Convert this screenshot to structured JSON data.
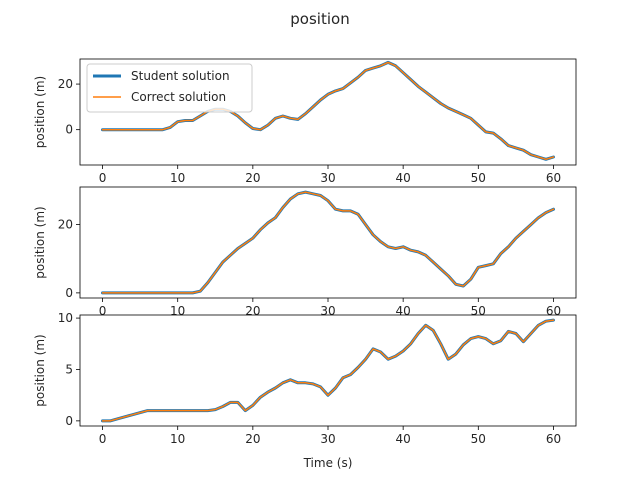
{
  "figure": {
    "title": "position"
  },
  "colors": {
    "student": "#1f77b4",
    "correct": "#ff7f0e"
  },
  "chart_data": [
    {
      "type": "line",
      "xlabel": "",
      "ylabel": "position (m)",
      "xlim": [
        -3,
        63
      ],
      "ylim": [
        -15.5,
        31
      ],
      "xticks": [
        0,
        10,
        20,
        30,
        40,
        50,
        60
      ],
      "yticks": [
        0,
        20
      ],
      "legend": {
        "position": "top-left",
        "entries": [
          "Student solution",
          "Correct solution"
        ]
      },
      "series": [
        {
          "name": "Student solution",
          "color": "#1f77b4",
          "line_width": 3,
          "x": [
            0,
            2,
            4,
            6,
            8,
            9,
            10,
            11,
            12,
            13,
            14,
            15,
            16,
            17,
            18,
            19,
            20,
            21,
            22,
            23,
            24,
            25,
            26,
            27,
            28,
            29,
            30,
            31,
            32,
            33,
            34,
            35,
            36,
            37,
            38,
            39,
            40,
            41,
            42,
            43,
            44,
            45,
            46,
            47,
            48,
            49,
            50,
            51,
            52,
            53,
            54,
            55,
            56,
            57,
            58,
            59,
            60
          ],
          "y": [
            0,
            0,
            0,
            0,
            0,
            1,
            3.5,
            4,
            4,
            6,
            8,
            9,
            9,
            8,
            6,
            3,
            0.5,
            0,
            2,
            5,
            6,
            5,
            4.5,
            7,
            10,
            13,
            15.5,
            17,
            18,
            20.5,
            23,
            26,
            27,
            28,
            29.5,
            28,
            25,
            22,
            19,
            16.5,
            14,
            11.5,
            9.5,
            8,
            6.5,
            5,
            2,
            -1,
            -1.5,
            -4,
            -7,
            -8,
            -9,
            -11,
            -12,
            -13,
            -12
          ]
        },
        {
          "name": "Correct solution",
          "color": "#ff7f0e",
          "line_width": 1.5,
          "x": [
            0,
            2,
            4,
            6,
            8,
            9,
            10,
            11,
            12,
            13,
            14,
            15,
            16,
            17,
            18,
            19,
            20,
            21,
            22,
            23,
            24,
            25,
            26,
            27,
            28,
            29,
            30,
            31,
            32,
            33,
            34,
            35,
            36,
            37,
            38,
            39,
            40,
            41,
            42,
            43,
            44,
            45,
            46,
            47,
            48,
            49,
            50,
            51,
            52,
            53,
            54,
            55,
            56,
            57,
            58,
            59,
            60
          ],
          "y": [
            0,
            0,
            0,
            0,
            0,
            1,
            3.5,
            4,
            4,
            6,
            8,
            9,
            9,
            8,
            6,
            3,
            0.5,
            0,
            2,
            5,
            6,
            5,
            4.5,
            7,
            10,
            13,
            15.5,
            17,
            18,
            20.5,
            23,
            26,
            27,
            28,
            29.5,
            28,
            25,
            22,
            19,
            16.5,
            14,
            11.5,
            9.5,
            8,
            6.5,
            5,
            2,
            -1,
            -1.5,
            -4,
            -7,
            -8,
            -9,
            -11,
            -12,
            -13,
            -12
          ]
        }
      ]
    },
    {
      "type": "line",
      "xlabel": "",
      "ylabel": "position (m)",
      "xlim": [
        -3,
        63
      ],
      "ylim": [
        -1.5,
        31
      ],
      "xticks": [
        0,
        10,
        20,
        30,
        40,
        50,
        60
      ],
      "yticks": [
        0,
        20
      ],
      "series": [
        {
          "name": "Student solution",
          "color": "#1f77b4",
          "line_width": 3,
          "x": [
            0,
            2,
            4,
            6,
            8,
            10,
            12,
            13,
            14,
            15,
            16,
            17,
            18,
            19,
            20,
            21,
            22,
            23,
            24,
            25,
            26,
            27,
            28,
            29,
            30,
            31,
            32,
            33,
            34,
            35,
            36,
            37,
            38,
            39,
            40,
            41,
            42,
            43,
            44,
            45,
            46,
            47,
            48,
            49,
            50,
            51,
            52,
            53,
            54,
            55,
            56,
            57,
            58,
            59,
            60
          ],
          "y": [
            0,
            0,
            0,
            0,
            0,
            0,
            0,
            0.5,
            3,
            6,
            9,
            11,
            13,
            14.5,
            16,
            18.5,
            20.5,
            22,
            25,
            27.5,
            29,
            29.5,
            29,
            28.5,
            27,
            24.5,
            24,
            24,
            23,
            20,
            17,
            15,
            13.5,
            13,
            13.5,
            12.5,
            12,
            11,
            9,
            7,
            5,
            2.5,
            2,
            4,
            7.5,
            8,
            8.5,
            11.5,
            13.5,
            16,
            18,
            20,
            22,
            23.5,
            24.5
          ]
        },
        {
          "name": "Correct solution",
          "color": "#ff7f0e",
          "line_width": 1.5,
          "x": [
            0,
            2,
            4,
            6,
            8,
            10,
            12,
            13,
            14,
            15,
            16,
            17,
            18,
            19,
            20,
            21,
            22,
            23,
            24,
            25,
            26,
            27,
            28,
            29,
            30,
            31,
            32,
            33,
            34,
            35,
            36,
            37,
            38,
            39,
            40,
            41,
            42,
            43,
            44,
            45,
            46,
            47,
            48,
            49,
            50,
            51,
            52,
            53,
            54,
            55,
            56,
            57,
            58,
            59,
            60
          ],
          "y": [
            0,
            0,
            0,
            0,
            0,
            0,
            0,
            0.5,
            3,
            6,
            9,
            11,
            13,
            14.5,
            16,
            18.5,
            20.5,
            22,
            25,
            27.5,
            29,
            29.5,
            29,
            28.5,
            27,
            24.5,
            24,
            24,
            23,
            20,
            17,
            15,
            13.5,
            13,
            13.5,
            12.5,
            12,
            11,
            9,
            7,
            5,
            2.5,
            2,
            4,
            7.5,
            8,
            8.5,
            11.5,
            13.5,
            16,
            18,
            20,
            22,
            23.5,
            24.5
          ]
        }
      ]
    },
    {
      "type": "line",
      "xlabel": "Time (s)",
      "ylabel": "position (m)",
      "xlim": [
        -3,
        63
      ],
      "ylim": [
        -0.5,
        10.3
      ],
      "xticks": [
        0,
        10,
        20,
        30,
        40,
        50,
        60
      ],
      "yticks": [
        0,
        5,
        10
      ],
      "series": [
        {
          "name": "Student solution",
          "color": "#1f77b4",
          "line_width": 3,
          "x": [
            0,
            1,
            2,
            4,
            6,
            8,
            10,
            12,
            14,
            15,
            16,
            17,
            18,
            19,
            20,
            21,
            22,
            23,
            24,
            25,
            26,
            27,
            28,
            29,
            30,
            31,
            32,
            33,
            34,
            35,
            36,
            37,
            38,
            39,
            40,
            41,
            42,
            43,
            44,
            45,
            46,
            47,
            48,
            49,
            50,
            51,
            52,
            53,
            54,
            55,
            56,
            57,
            58,
            59,
            60
          ],
          "y": [
            0,
            0,
            0.2,
            0.6,
            1,
            1,
            1,
            1,
            1,
            1.1,
            1.4,
            1.8,
            1.8,
            1,
            1.5,
            2.3,
            2.8,
            3.2,
            3.7,
            4,
            3.7,
            3.7,
            3.6,
            3.3,
            2.5,
            3.2,
            4.2,
            4.5,
            5.2,
            6,
            7,
            6.7,
            6,
            6.3,
            6.8,
            7.5,
            8.5,
            9.3,
            8.8,
            7.5,
            6,
            6.5,
            7.4,
            8,
            8.2,
            8,
            7.5,
            7.8,
            8.7,
            8.5,
            7.7,
            8.5,
            9.3,
            9.7,
            9.8
          ]
        },
        {
          "name": "Correct solution",
          "color": "#ff7f0e",
          "line_width": 1.5,
          "x": [
            0,
            1,
            2,
            4,
            6,
            8,
            10,
            12,
            14,
            15,
            16,
            17,
            18,
            19,
            20,
            21,
            22,
            23,
            24,
            25,
            26,
            27,
            28,
            29,
            30,
            31,
            32,
            33,
            34,
            35,
            36,
            37,
            38,
            39,
            40,
            41,
            42,
            43,
            44,
            45,
            46,
            47,
            48,
            49,
            50,
            51,
            52,
            53,
            54,
            55,
            56,
            57,
            58,
            59,
            60
          ],
          "y": [
            0,
            0,
            0.2,
            0.6,
            1,
            1,
            1,
            1,
            1,
            1.1,
            1.4,
            1.8,
            1.8,
            1,
            1.5,
            2.3,
            2.8,
            3.2,
            3.7,
            4,
            3.7,
            3.7,
            3.6,
            3.3,
            2.5,
            3.2,
            4.2,
            4.5,
            5.2,
            6,
            7,
            6.7,
            6,
            6.3,
            6.8,
            7.5,
            8.5,
            9.3,
            8.8,
            7.5,
            6,
            6.5,
            7.4,
            8,
            8.2,
            8,
            7.5,
            7.8,
            8.7,
            8.5,
            7.7,
            8.5,
            9.3,
            9.7,
            9.8
          ]
        }
      ]
    }
  ]
}
